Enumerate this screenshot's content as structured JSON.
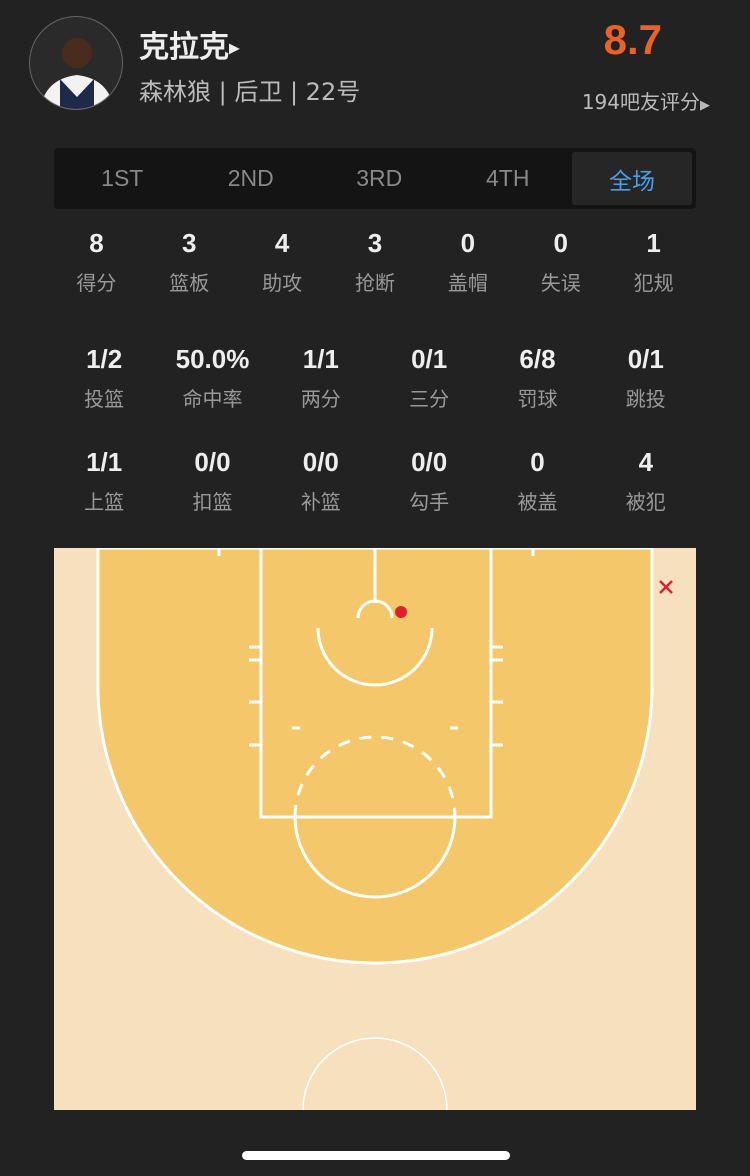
{
  "player": {
    "name": "克拉克",
    "info": "森林狼 | 后卫 | 22号",
    "rating": "8.7",
    "raters": "194吧友评分"
  },
  "tabs": [
    {
      "label": "1ST"
    },
    {
      "label": "2ND"
    },
    {
      "label": "3RD"
    },
    {
      "label": "4TH"
    },
    {
      "label": "全场",
      "active": true
    }
  ],
  "stats_row1": [
    {
      "v": "8",
      "l": "得分"
    },
    {
      "v": "3",
      "l": "篮板"
    },
    {
      "v": "4",
      "l": "助攻"
    },
    {
      "v": "3",
      "l": "抢断"
    },
    {
      "v": "0",
      "l": "盖帽"
    },
    {
      "v": "0",
      "l": "失误"
    },
    {
      "v": "1",
      "l": "犯规"
    }
  ],
  "stats_row2": [
    {
      "v": "1/2",
      "l": "投篮"
    },
    {
      "v": "50.0%",
      "l": "命中率"
    },
    {
      "v": "1/1",
      "l": "两分"
    },
    {
      "v": "0/1",
      "l": "三分"
    },
    {
      "v": "6/8",
      "l": "罚球"
    },
    {
      "v": "0/1",
      "l": "跳投"
    }
  ],
  "stats_row3": [
    {
      "v": "1/1",
      "l": "上篮"
    },
    {
      "v": "0/0",
      "l": "扣篮"
    },
    {
      "v": "0/0",
      "l": "补篮"
    },
    {
      "v": "0/0",
      "l": "勾手"
    },
    {
      "v": "0",
      "l": "被盖"
    },
    {
      "v": "4",
      "l": "被犯"
    }
  ],
  "shots": [
    {
      "result": "made",
      "type": "layup"
    },
    {
      "result": "missed",
      "type": "three-point jumper"
    }
  ],
  "colors": {
    "rating": "#e8622a",
    "active_tab": "#4a9de6",
    "made": "#e0202a",
    "missed": "#e0202a",
    "court_inner": "#f5c76b",
    "court_outer": "#f7e0bd"
  }
}
